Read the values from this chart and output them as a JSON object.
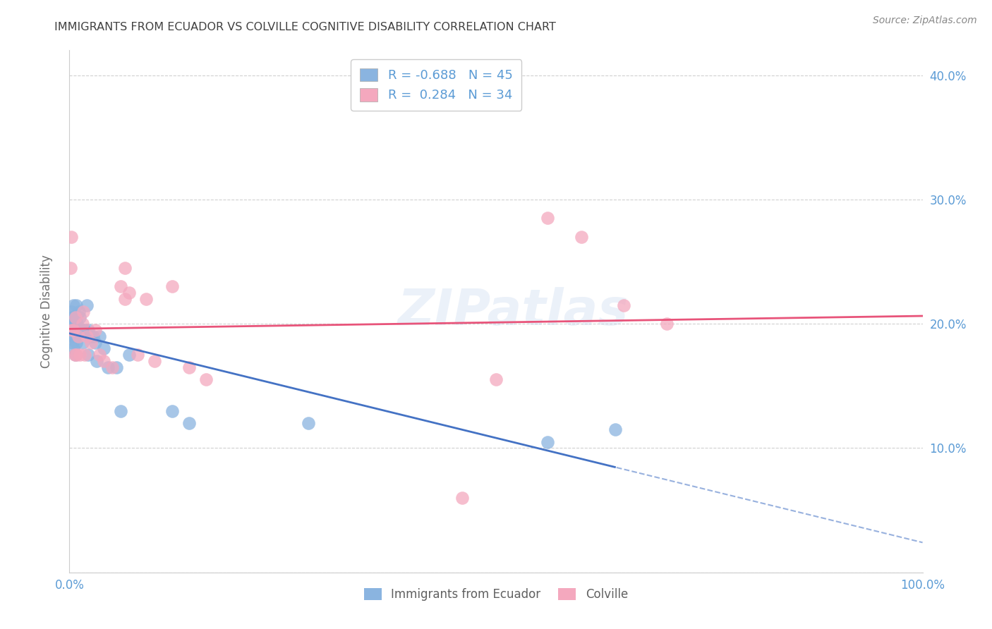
{
  "title": "IMMIGRANTS FROM ECUADOR VS COLVILLE COGNITIVE DISABILITY CORRELATION CHART",
  "source": "Source: ZipAtlas.com",
  "ylabel": "Cognitive Disability",
  "xlim": [
    0,
    1.0
  ],
  "ylim": [
    0,
    0.42
  ],
  "xticks": [
    0.0,
    0.1,
    0.2,
    0.3,
    0.4,
    0.5,
    0.6,
    0.7,
    0.8,
    0.9,
    1.0
  ],
  "xticklabels": [
    "0.0%",
    "",
    "",
    "",
    "",
    "",
    "",
    "",
    "",
    "",
    "100.0%"
  ],
  "yticks": [
    0.0,
    0.1,
    0.2,
    0.3,
    0.4
  ],
  "yticklabels_right": [
    "",
    "10.0%",
    "20.0%",
    "30.0%",
    "40.0%"
  ],
  "legend_r1": "R = -0.688",
  "legend_n1": "N = 45",
  "legend_r2": "R =  0.284",
  "legend_n2": "N = 34",
  "blue_color": "#8ab4e0",
  "pink_color": "#f4a8be",
  "trend_blue": "#4472c4",
  "trend_pink": "#e8547a",
  "axis_label_color": "#5b9bd5",
  "title_color": "#404040",
  "watermark": "ZIPatlas",
  "blue_points_x": [
    0.001,
    0.001,
    0.002,
    0.002,
    0.003,
    0.003,
    0.004,
    0.004,
    0.004,
    0.005,
    0.005,
    0.005,
    0.006,
    0.006,
    0.007,
    0.007,
    0.007,
    0.008,
    0.008,
    0.009,
    0.01,
    0.011,
    0.012,
    0.013,
    0.015,
    0.016,
    0.018,
    0.02,
    0.022,
    0.022,
    0.025,
    0.028,
    0.03,
    0.032,
    0.035,
    0.04,
    0.045,
    0.055,
    0.06,
    0.07,
    0.12,
    0.14,
    0.28,
    0.56,
    0.64
  ],
  "blue_points_y": [
    0.205,
    0.195,
    0.21,
    0.195,
    0.205,
    0.19,
    0.205,
    0.195,
    0.185,
    0.215,
    0.2,
    0.18,
    0.205,
    0.19,
    0.205,
    0.195,
    0.175,
    0.215,
    0.185,
    0.2,
    0.195,
    0.21,
    0.205,
    0.195,
    0.185,
    0.195,
    0.195,
    0.215,
    0.195,
    0.175,
    0.19,
    0.19,
    0.185,
    0.17,
    0.19,
    0.18,
    0.165,
    0.165,
    0.13,
    0.175,
    0.13,
    0.12,
    0.12,
    0.105,
    0.115
  ],
  "pink_points_x": [
    0.001,
    0.002,
    0.003,
    0.005,
    0.006,
    0.007,
    0.008,
    0.01,
    0.012,
    0.015,
    0.016,
    0.018,
    0.02,
    0.025,
    0.03,
    0.035,
    0.04,
    0.05,
    0.06,
    0.065,
    0.065,
    0.07,
    0.08,
    0.09,
    0.1,
    0.12,
    0.14,
    0.16,
    0.46,
    0.5,
    0.56,
    0.6,
    0.65,
    0.7
  ],
  "pink_points_y": [
    0.245,
    0.27,
    0.195,
    0.195,
    0.175,
    0.205,
    0.175,
    0.19,
    0.175,
    0.2,
    0.21,
    0.175,
    0.19,
    0.185,
    0.195,
    0.175,
    0.17,
    0.165,
    0.23,
    0.245,
    0.22,
    0.225,
    0.175,
    0.22,
    0.17,
    0.23,
    0.165,
    0.155,
    0.06,
    0.155,
    0.285,
    0.27,
    0.215,
    0.2
  ],
  "grid_color": "#d0d0d0",
  "background_color": "#ffffff",
  "blue_line_solid_end": 0.64,
  "pink_line_end": 1.0,
  "pink_line_start": 0.0
}
